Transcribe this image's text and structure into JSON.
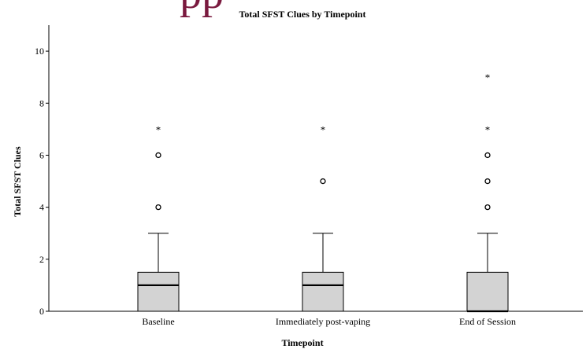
{
  "header_fragment": {
    "text": "pp",
    "color": "#7a1a3f"
  },
  "chart_data": {
    "type": "boxplot",
    "title": "Total SFST Clues by Timepoint",
    "xlabel": "Timepoint",
    "ylabel": "Total SFST Clues",
    "ylim": [
      0,
      11
    ],
    "yticks": [
      0,
      2,
      4,
      6,
      8,
      10
    ],
    "grid": false,
    "categories": [
      "Baseline",
      "Immediately post-vaping",
      "End of Session"
    ],
    "boxes": [
      {
        "category": "Baseline",
        "whisker_low": 0,
        "q1": 0,
        "median": 1,
        "q3": 1.5,
        "whisker_high": 3,
        "outliers": [
          4,
          6
        ],
        "extremes": [
          7
        ]
      },
      {
        "category": "Immediately post-vaping",
        "whisker_low": 0,
        "q1": 0,
        "median": 1,
        "q3": 1.5,
        "whisker_high": 3,
        "outliers": [
          5
        ],
        "extremes": [
          7
        ]
      },
      {
        "category": "End of Session",
        "whisker_low": 0,
        "q1": 0,
        "median": 0,
        "q3": 1.5,
        "whisker_high": 3,
        "outliers": [
          4,
          5,
          6
        ],
        "extremes": [
          7,
          9
        ]
      }
    ],
    "colors": {
      "box_fill": "#d3d3d3",
      "stroke": "#000000"
    }
  }
}
